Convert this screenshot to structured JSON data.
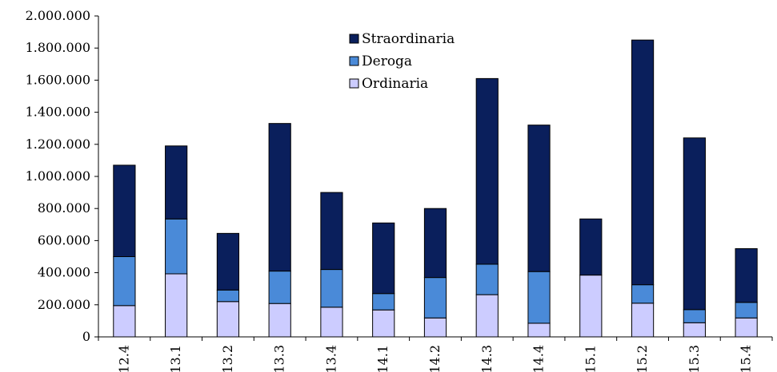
{
  "chart_data": {
    "type": "bar",
    "stacked": true,
    "categories": [
      "12.4",
      "13.1",
      "13.2",
      "13.3",
      "13.4",
      "14.1",
      "14.2",
      "14.3",
      "14.4",
      "15.1",
      "15.2",
      "15.3",
      "15.4"
    ],
    "series": [
      {
        "name": "Ordinaria",
        "color": "#ccccff",
        "values": [
          195000,
          393000,
          220000,
          208000,
          185000,
          168000,
          118000,
          263000,
          85000,
          385000,
          210000,
          88000,
          118000
        ]
      },
      {
        "name": "Deroga",
        "color": "#4a8ad8",
        "values": [
          305000,
          342000,
          72000,
          202000,
          235000,
          102000,
          252000,
          190000,
          322000,
          0,
          115000,
          82000,
          97000
        ]
      },
      {
        "name": "Straordinaria",
        "color": "#0a1f5c",
        "values": [
          570000,
          455000,
          353000,
          920000,
          480000,
          440000,
          430000,
          1157000,
          913000,
          350000,
          1525000,
          1070000,
          335000
        ]
      }
    ],
    "ylim": [
      0,
      2000000
    ],
    "y_ticks": [
      0,
      200000,
      400000,
      600000,
      800000,
      1000000,
      1200000,
      1400000,
      1600000,
      1800000,
      2000000
    ],
    "y_tick_labels": [
      "0",
      "200.000",
      "400.000",
      "600.000",
      "800.000",
      "1.000.000",
      "1.200.000",
      "1.400.000",
      "1.600.000",
      "1.800.000",
      "2.000.000"
    ],
    "grid": false,
    "legend": {
      "placement": "top-center",
      "order": [
        "Straordinaria",
        "Deroga",
        "Ordinaria"
      ]
    },
    "title": "",
    "xlabel": "",
    "ylabel": ""
  }
}
